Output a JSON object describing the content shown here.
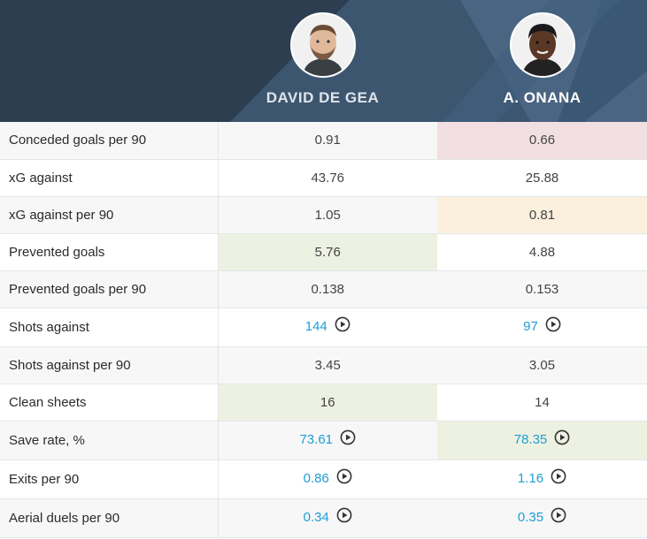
{
  "players": [
    {
      "name": "DAVID DE GEA",
      "avatar_icon": "player-photo-icon"
    },
    {
      "name": "A. ONANA",
      "avatar_icon": "player-photo-icon"
    }
  ],
  "rows": [
    {
      "label": "Conceded goals per 90",
      "v1": "0.91",
      "v2": "0.66",
      "highlight": "v2-red"
    },
    {
      "label": "xG against",
      "v1": "43.76",
      "v2": "25.88"
    },
    {
      "label": "xG against per 90",
      "v1": "1.05",
      "v2": "0.81",
      "highlight": "v2-yellow"
    },
    {
      "label": "Prevented goals",
      "v1": "5.76",
      "v2": "4.88",
      "highlight": "v1-green"
    },
    {
      "label": "Prevented goals per 90",
      "v1": "0.138",
      "v2": "0.153"
    },
    {
      "label": "Shots against",
      "v1": "144",
      "v2": "97",
      "link": true
    },
    {
      "label": "Shots against per 90",
      "v1": "3.45",
      "v2": "3.05"
    },
    {
      "label": "Clean sheets",
      "v1": "16",
      "v2": "14",
      "highlight": "v1-green"
    },
    {
      "label": "Save rate, %",
      "v1": "73.61",
      "v2": "78.35",
      "link": true,
      "highlight": "v2-green"
    },
    {
      "label": "Exits per 90",
      "v1": "0.86",
      "v2": "1.16",
      "link": true
    },
    {
      "label": "Aerial duels per 90",
      "v1": "0.34",
      "v2": "0.35",
      "link": true
    }
  ],
  "colors": {
    "header_bg": "#2c3e50",
    "link": "#1e9ed6",
    "highlight_red": "#f2dfe1",
    "highlight_green": "#edf1e1",
    "highlight_yellow": "#faf0dd"
  },
  "icons": {
    "play": "play-circle-icon"
  }
}
